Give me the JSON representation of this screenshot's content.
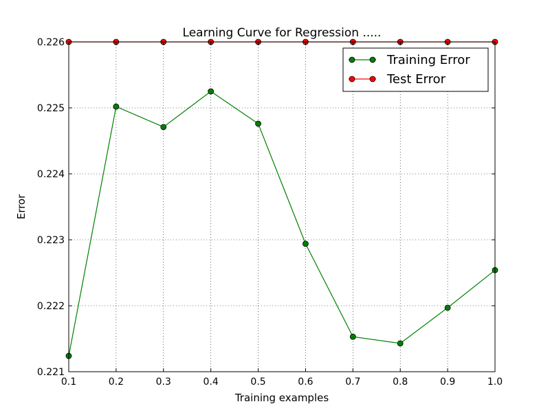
{
  "chart_data": {
    "type": "line",
    "title": "Learning Curve for Regression .....",
    "xlabel": "Training examples",
    "ylabel": "Error",
    "xlim": [
      0.1,
      1.0
    ],
    "ylim": [
      0.221,
      0.226
    ],
    "x_ticks": [
      "0.1",
      "0.2",
      "0.3",
      "0.4",
      "0.5",
      "0.6",
      "0.7",
      "0.8",
      "0.9",
      "1.0"
    ],
    "y_ticks": [
      "0.221",
      "0.222",
      "0.223",
      "0.224",
      "0.225",
      "0.226"
    ],
    "grid": true,
    "legend_position": "top-right",
    "x": [
      0.1,
      0.2,
      0.3,
      0.4,
      0.5,
      0.6,
      0.7,
      0.8,
      0.9,
      1.0
    ],
    "series": [
      {
        "name": "Training Error",
        "color": "#008000",
        "values": [
          0.22124,
          0.22502,
          0.22471,
          0.22525,
          0.22476,
          0.22294,
          0.22153,
          0.22143,
          0.22197,
          0.22254
        ]
      },
      {
        "name": "Test Error",
        "color": "#ff0000",
        "values": [
          0.226,
          0.226,
          0.226,
          0.226,
          0.226,
          0.226,
          0.226,
          0.226,
          0.226,
          0.226
        ]
      }
    ]
  }
}
